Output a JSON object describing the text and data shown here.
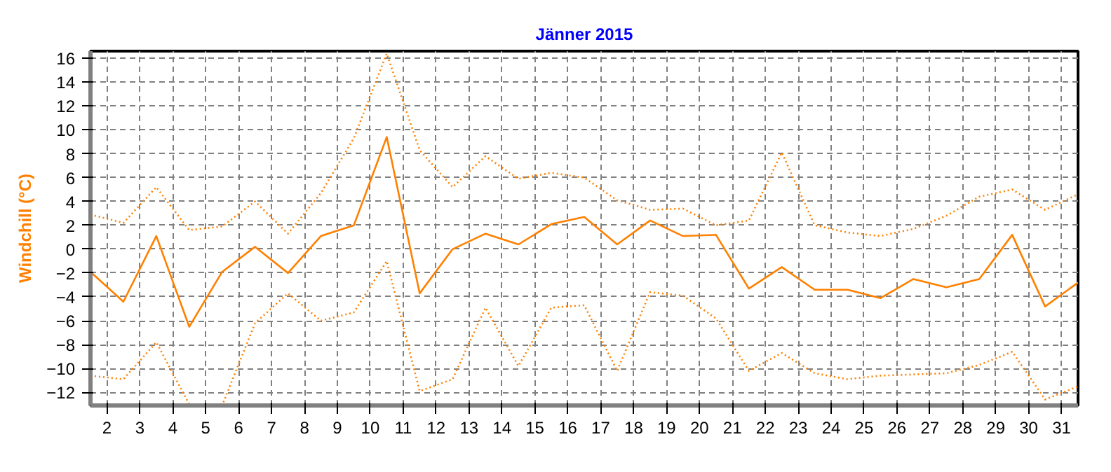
{
  "chart_data": {
    "type": "line",
    "title": "Jänner 2015",
    "ylabel": "Windchill (°C)",
    "x": [
      1.5,
      2.5,
      3.5,
      4.5,
      5.5,
      6.5,
      7.5,
      8.5,
      9.5,
      10.5,
      11.5,
      12.5,
      13.5,
      14.5,
      15.5,
      16.5,
      17.5,
      18.5,
      19.5,
      20.5,
      21.5,
      22.5,
      23.5,
      24.5,
      25.5,
      26.5,
      27.5,
      28.5,
      29.5,
      30.5,
      31.5
    ],
    "xlim": [
      1.5,
      31.5
    ],
    "xticks": [
      2,
      3,
      4,
      5,
      6,
      7,
      8,
      9,
      10,
      11,
      12,
      13,
      14,
      15,
      16,
      17,
      18,
      19,
      20,
      21,
      22,
      23,
      24,
      25,
      26,
      27,
      28,
      29,
      30,
      31
    ],
    "ylim": [
      -13.1,
      16.6
    ],
    "yticks": [
      -12,
      -10,
      -8,
      -6,
      -4,
      -2,
      0,
      2,
      4,
      6,
      8,
      10,
      12,
      14,
      16
    ],
    "grid": true,
    "marker": "none",
    "series": [
      {
        "color": "#ff8000",
        "line_style": "dotted",
        "values": [
          2.9,
          2.2,
          5.2,
          1.6,
          1.9,
          4.0,
          1.3,
          4.7,
          9.3,
          16.4,
          8.3,
          5.2,
          7.8,
          5.9,
          6.4,
          6.0,
          4.1,
          3.3,
          3.4,
          2.0,
          2.4,
          8.1,
          2.0,
          1.4,
          1.1,
          1.7,
          2.8,
          4.4,
          5.0,
          3.3,
          4.6
        ]
      },
      {
        "color": "#ff8000",
        "line_style": "solid",
        "values": [
          -1.9,
          -4.4,
          1.1,
          -6.5,
          -1.9,
          0.2,
          -2.0,
          1.1,
          2.0,
          9.4,
          -3.7,
          0.0,
          1.3,
          0.4,
          2.1,
          2.7,
          0.4,
          2.4,
          1.1,
          1.2,
          -3.3,
          -1.5,
          -3.4,
          -3.4,
          -4.1,
          -2.5,
          -3.2,
          -2.5,
          1.2,
          -4.8,
          -2.8
        ]
      },
      {
        "color": "#ff8000",
        "line_style": "dotted",
        "values": [
          -10.6,
          -10.9,
          -7.8,
          -13.0,
          -13.1,
          -6.2,
          -3.7,
          -6.0,
          -5.3,
          -1.0,
          -11.9,
          -10.9,
          -4.9,
          -9.8,
          -4.9,
          -4.7,
          -10.2,
          -3.6,
          -3.9,
          -5.8,
          -10.2,
          -8.7,
          -10.4,
          -10.9,
          -10.6,
          -10.5,
          -10.4,
          -9.7,
          -8.6,
          -12.6,
          -11.5
        ]
      }
    ]
  }
}
